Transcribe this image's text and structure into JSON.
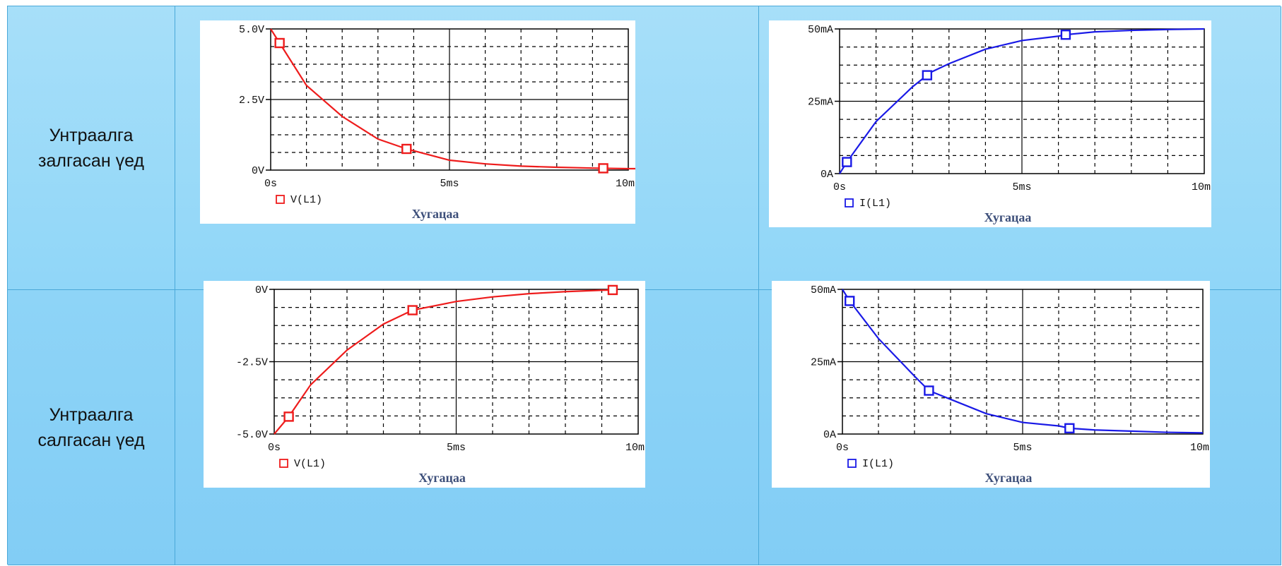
{
  "rows": [
    {
      "label_line1": "Унтраалга",
      "label_line2": "залгасан үед"
    },
    {
      "label_line1": "Унтраалга",
      "label_line2": "салгасан үед"
    }
  ],
  "chart_data": [
    {
      "type": "line",
      "title": "",
      "xlabel": "Хугацаа",
      "ylabel": "",
      "xlim": [
        0,
        10
      ],
      "ylim": [
        0,
        5
      ],
      "x_ticks": [
        "0s",
        "5ms",
        "10ms"
      ],
      "y_ticks": [
        "0V",
        "2.5V",
        "5.0V"
      ],
      "grid": true,
      "legend_position": "bottom-left",
      "series": [
        {
          "name": "V(L1)",
          "color": "#ee1c1c",
          "x": [
            0,
            0.25,
            1,
            2,
            3,
            3.8,
            5,
            6,
            7,
            8,
            9,
            10,
            10.2
          ],
          "y": [
            5,
            4.5,
            3.0,
            1.9,
            1.1,
            0.75,
            0.35,
            0.22,
            0.14,
            0.1,
            0.07,
            0.05,
            0.05
          ],
          "markers_x": [
            0.25,
            3.8,
            9.3
          ]
        }
      ]
    },
    {
      "type": "line",
      "title": "",
      "xlabel": "Хугацаа",
      "ylabel": "",
      "xlim": [
        0,
        10
      ],
      "ylim": [
        0,
        50
      ],
      "x_ticks": [
        "0s",
        "5ms",
        "10ms"
      ],
      "y_ticks": [
        "0A",
        "25mA",
        "50mA"
      ],
      "grid": true,
      "legend_position": "bottom-left",
      "series": [
        {
          "name": "I(L1)",
          "color": "#1a1ae6",
          "x": [
            0,
            0.2,
            1,
            2,
            2.5,
            3,
            4,
            5,
            6,
            6.2,
            7,
            8,
            9,
            10
          ],
          "y": [
            0,
            4,
            18,
            30,
            35,
            38,
            43,
            46,
            47.5,
            48,
            49,
            49.5,
            49.8,
            50
          ],
          "markers_x": [
            0.2,
            2.4,
            6.2
          ]
        }
      ]
    },
    {
      "type": "line",
      "title": "",
      "xlabel": "Хугацаа",
      "ylabel": "",
      "xlim": [
        0,
        10
      ],
      "ylim": [
        -5,
        0
      ],
      "x_ticks": [
        "0s",
        "5ms",
        "10ms"
      ],
      "y_ticks": [
        "-5.0V",
        "-2.5V",
        "0V"
      ],
      "grid": true,
      "legend_position": "bottom-left",
      "series": [
        {
          "name": "V(L1)",
          "color": "#ee1c1c",
          "x": [
            0,
            0.4,
            1,
            2,
            3,
            3.8,
            5,
            6,
            7,
            8,
            9,
            9.4
          ],
          "y": [
            -5,
            -4.4,
            -3.3,
            -2.1,
            -1.2,
            -0.72,
            -0.42,
            -0.26,
            -0.15,
            -0.08,
            -0.03,
            -0.02
          ],
          "markers_x": [
            0.4,
            3.8,
            9.3
          ]
        }
      ]
    },
    {
      "type": "line",
      "title": "",
      "xlabel": "Хугацаа",
      "ylabel": "",
      "xlim": [
        0,
        10
      ],
      "ylim": [
        0,
        50
      ],
      "x_ticks": [
        "0s",
        "5ms",
        "10ms"
      ],
      "y_ticks": [
        "0A",
        "25mA",
        "50mA"
      ],
      "grid": true,
      "legend_position": "bottom-left",
      "series": [
        {
          "name": "I(L1)",
          "color": "#1a1ae6",
          "x": [
            0,
            0.2,
            1,
            2,
            2.4,
            3,
            4,
            5,
            6,
            6.3,
            7,
            8,
            9,
            10
          ],
          "y": [
            50,
            46,
            33,
            20,
            15,
            12,
            7,
            4,
            2.8,
            2,
            1.4,
            1,
            0.6,
            0.4
          ],
          "markers_x": [
            0.2,
            2.4,
            6.3
          ]
        }
      ]
    }
  ]
}
